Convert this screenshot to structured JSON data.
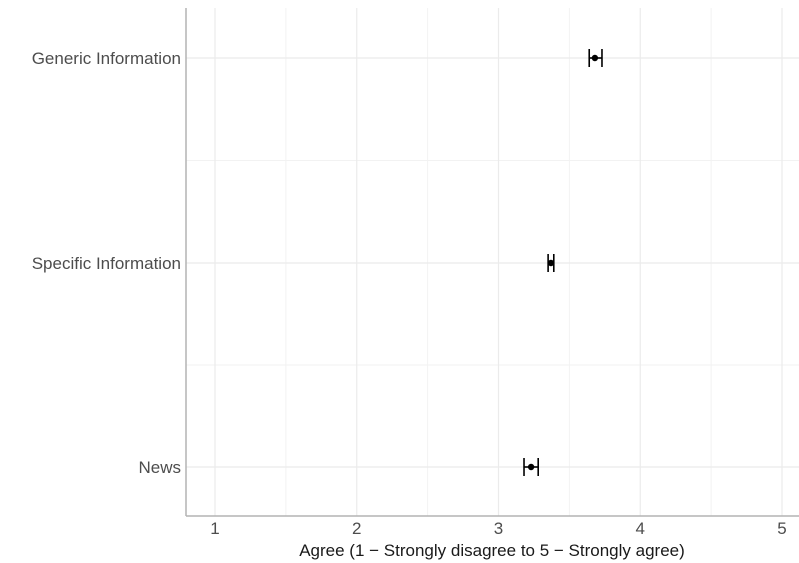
{
  "chart_data": {
    "type": "scatter",
    "orientation": "horizontal",
    "title": "",
    "xlabel": "Agree (1 − Strongly disagree to 5 − Strongly agree)",
    "ylabel": "",
    "xlim": [
      0.8,
      5.12
    ],
    "xticks": [
      1,
      2,
      3,
      4,
      5
    ],
    "xtick_labels": [
      "1",
      "2",
      "3",
      "4",
      "5"
    ],
    "categories": [
      "Generic Information",
      "Specific Information",
      "News"
    ],
    "values": [
      3.68,
      3.37,
      3.23
    ],
    "error_low": [
      3.64,
      3.35,
      3.18
    ],
    "error_high": [
      3.73,
      3.39,
      3.28
    ],
    "grid": true,
    "legend": "none",
    "colors": {
      "point": "#000000",
      "grid_major": "#ebebeb",
      "grid_minor": "#f2f2f2",
      "axis_line": "#b3b3b3"
    }
  }
}
